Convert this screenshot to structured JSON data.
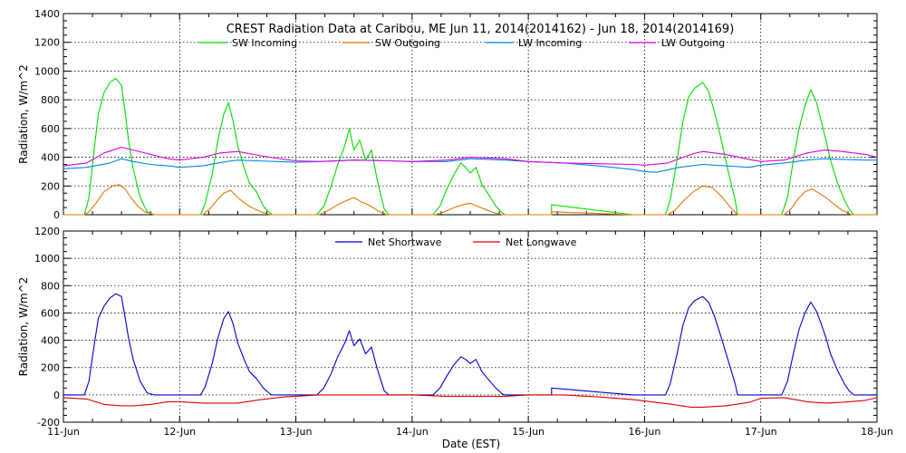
{
  "colors": {
    "sw_incoming": "#00dd00",
    "sw_outgoing": "#e07800",
    "lw_incoming": "#0088dd",
    "lw_outgoing": "#dd00dd",
    "net_shortwave": "#0000cc",
    "net_longwave": "#dd0000",
    "axis": "#000000",
    "grid": "#000000"
  },
  "chart_data": [
    {
      "type": "line",
      "title": "CREST Radiation Data at Caribou, ME   Jun 11, 2014(2014162) - Jun 18, 2014(2014169)",
      "xlabel": "",
      "ylabel": "Radiation, W/m^2",
      "x_unit": "days since 11-Jun 00:00",
      "xlim": [
        0,
        7
      ],
      "ylim": [
        0,
        1400
      ],
      "yticks": [
        0,
        200,
        400,
        600,
        800,
        1000,
        1200,
        1400
      ],
      "grid": true,
      "legend": "top",
      "series": [
        {
          "name": "SW Incoming",
          "key": "sw_incoming",
          "x": [
            0,
            0.18,
            0.22,
            0.26,
            0.3,
            0.35,
            0.4,
            0.45,
            0.5,
            0.53,
            0.56,
            0.6,
            0.66,
            0.72,
            0.78,
            0.8,
            1.0,
            1.18,
            1.22,
            1.28,
            1.33,
            1.38,
            1.42,
            1.46,
            1.5,
            1.55,
            1.6,
            1.66,
            1.72,
            1.78,
            1.8,
            2.0,
            2.18,
            2.24,
            2.3,
            2.36,
            2.42,
            2.46,
            2.5,
            2.55,
            2.6,
            2.65,
            2.7,
            2.76,
            2.8,
            3.0,
            3.18,
            3.24,
            3.3,
            3.36,
            3.42,
            3.46,
            3.5,
            3.55,
            3.6,
            3.66,
            3.72,
            3.78,
            3.8,
            4.0,
            4.2,
            4.2,
            4.9,
            5.0,
            5.18,
            5.22,
            5.28,
            5.33,
            5.38,
            5.43,
            5.5,
            5.55,
            5.6,
            5.66,
            5.72,
            5.78,
            5.8,
            6.0,
            6.18,
            6.23,
            6.28,
            6.33,
            6.38,
            6.43,
            6.48,
            6.52,
            6.56,
            6.6,
            6.66,
            6.72,
            6.76,
            6.8,
            7.0
          ],
          "y": [
            0,
            0,
            120,
            420,
            700,
            850,
            920,
            950,
            900,
            720,
            520,
            320,
            120,
            20,
            0,
            0,
            0,
            0,
            80,
            280,
            520,
            700,
            780,
            650,
            480,
            340,
            220,
            160,
            60,
            10,
            0,
            0,
            0,
            60,
            190,
            350,
            480,
            600,
            450,
            520,
            380,
            450,
            240,
            40,
            0,
            0,
            0,
            60,
            180,
            280,
            360,
            330,
            290,
            330,
            210,
            140,
            60,
            10,
            0,
            0,
            0,
            70,
            0,
            0,
            0,
            100,
            380,
            650,
            820,
            880,
            920,
            860,
            720,
            520,
            300,
            100,
            0,
            0,
            0,
            120,
            380,
            600,
            760,
            870,
            780,
            650,
            520,
            380,
            220,
            100,
            40,
            0,
            0
          ]
        },
        {
          "name": "SW Outgoing",
          "key": "sw_outgoing",
          "x": [
            0,
            0.18,
            0.22,
            0.28,
            0.35,
            0.42,
            0.48,
            0.53,
            0.58,
            0.64,
            0.7,
            0.78,
            0.8,
            1.0,
            1.2,
            1.26,
            1.32,
            1.38,
            1.44,
            1.5,
            1.56,
            1.62,
            1.7,
            1.78,
            1.8,
            2.0,
            2.2,
            2.28,
            2.36,
            2.44,
            2.5,
            2.56,
            2.62,
            2.7,
            2.78,
            2.8,
            3.0,
            3.2,
            3.28,
            3.36,
            3.44,
            3.5,
            3.56,
            3.62,
            3.7,
            3.78,
            3.8,
            4.0,
            4.2,
            4.2,
            4.9,
            5.0,
            5.2,
            5.26,
            5.34,
            5.42,
            5.5,
            5.58,
            5.66,
            5.74,
            5.8,
            6.0,
            6.2,
            6.26,
            6.32,
            6.38,
            6.44,
            6.5,
            6.56,
            6.62,
            6.7,
            6.78,
            6.8,
            7.0
          ],
          "y": [
            0,
            0,
            20,
            80,
            160,
            200,
            210,
            180,
            120,
            60,
            20,
            0,
            0,
            0,
            0,
            40,
            100,
            150,
            170,
            120,
            80,
            50,
            20,
            0,
            0,
            0,
            0,
            30,
            70,
            100,
            120,
            90,
            70,
            30,
            0,
            0,
            0,
            0,
            20,
            50,
            70,
            80,
            60,
            40,
            15,
            0,
            0,
            0,
            0,
            20,
            0,
            0,
            0,
            30,
            100,
            160,
            200,
            190,
            130,
            50,
            0,
            0,
            0,
            40,
            110,
            160,
            180,
            150,
            120,
            80,
            30,
            0,
            0,
            0
          ]
        },
        {
          "name": "LW Incoming",
          "key": "lw_incoming",
          "x": [
            0,
            0.2,
            0.4,
            0.5,
            0.6,
            0.75,
            0.9,
            1.0,
            1.2,
            1.4,
            1.5,
            1.65,
            1.85,
            2.0,
            2.2,
            2.5,
            2.8,
            3.0,
            3.3,
            3.5,
            3.8,
            4.0,
            4.3,
            4.6,
            4.9,
            5.0,
            5.1,
            5.3,
            5.5,
            5.7,
            5.9,
            6.0,
            6.2,
            6.4,
            6.55,
            6.7,
            6.9,
            7.0
          ],
          "y": [
            320,
            330,
            360,
            390,
            370,
            350,
            340,
            330,
            340,
            370,
            380,
            375,
            370,
            365,
            370,
            380,
            375,
            370,
            370,
            390,
            380,
            370,
            360,
            340,
            315,
            300,
            295,
            330,
            350,
            340,
            330,
            345,
            360,
            380,
            390,
            385,
            380,
            380
          ]
        },
        {
          "name": "LW Outgoing",
          "key": "lw_outgoing",
          "x": [
            0,
            0.2,
            0.35,
            0.5,
            0.6,
            0.75,
            0.9,
            1.0,
            1.2,
            1.35,
            1.5,
            1.7,
            1.9,
            2.0,
            2.2,
            2.5,
            2.8,
            3.0,
            3.3,
            3.5,
            3.8,
            4.0,
            4.3,
            4.6,
            4.9,
            5.0,
            5.2,
            5.4,
            5.5,
            5.7,
            5.9,
            6.0,
            6.2,
            6.4,
            6.55,
            6.7,
            6.9,
            7.0
          ],
          "y": [
            340,
            360,
            430,
            470,
            450,
            420,
            390,
            380,
            400,
            430,
            440,
            410,
            385,
            375,
            370,
            380,
            375,
            370,
            380,
            400,
            390,
            370,
            360,
            355,
            350,
            345,
            360,
            420,
            440,
            420,
            385,
            370,
            380,
            430,
            450,
            440,
            420,
            400
          ]
        }
      ]
    },
    {
      "type": "line",
      "title": "",
      "xlabel": "Date (EST)",
      "ylabel": "Radiation, W/m^2",
      "x_unit": "days since 11-Jun 00:00",
      "xlim": [
        0,
        7
      ],
      "ylim": [
        -200,
        1200
      ],
      "yticks": [
        -200,
        0,
        200,
        400,
        600,
        800,
        1000,
        1200
      ],
      "xtick_labels": [
        "11-Jun",
        "12-Jun",
        "13-Jun",
        "14-Jun",
        "15-Jun",
        "16-Jun",
        "17-Jun",
        "18-Jun"
      ],
      "grid": true,
      "legend": "top",
      "series": [
        {
          "name": "Net Shortwave",
          "key": "net_shortwave",
          "x": [
            0,
            0.18,
            0.22,
            0.26,
            0.3,
            0.35,
            0.4,
            0.45,
            0.5,
            0.53,
            0.56,
            0.6,
            0.66,
            0.72,
            0.78,
            0.8,
            1.0,
            1.18,
            1.22,
            1.28,
            1.33,
            1.38,
            1.42,
            1.46,
            1.5,
            1.55,
            1.6,
            1.66,
            1.72,
            1.78,
            1.8,
            2.0,
            2.18,
            2.24,
            2.3,
            2.36,
            2.42,
            2.46,
            2.5,
            2.55,
            2.6,
            2.65,
            2.7,
            2.76,
            2.8,
            3.0,
            3.18,
            3.24,
            3.3,
            3.36,
            3.42,
            3.46,
            3.5,
            3.55,
            3.6,
            3.66,
            3.72,
            3.78,
            3.8,
            4.0,
            4.2,
            4.2,
            4.9,
            5.0,
            5.18,
            5.22,
            5.28,
            5.33,
            5.38,
            5.43,
            5.5,
            5.55,
            5.6,
            5.66,
            5.72,
            5.78,
            5.8,
            6.0,
            6.18,
            6.23,
            6.28,
            6.33,
            6.38,
            6.43,
            6.48,
            6.52,
            6.56,
            6.6,
            6.66,
            6.72,
            6.76,
            6.8,
            7.0
          ],
          "y": [
            0,
            0,
            100,
            340,
            560,
            650,
            710,
            740,
            720,
            570,
            420,
            260,
            100,
            15,
            0,
            0,
            0,
            0,
            60,
            230,
            420,
            560,
            610,
            520,
            380,
            270,
            170,
            120,
            50,
            5,
            0,
            0,
            0,
            50,
            150,
            280,
            380,
            470,
            360,
            410,
            300,
            350,
            190,
            30,
            0,
            0,
            0,
            50,
            140,
            220,
            280,
            260,
            230,
            260,
            170,
            110,
            50,
            5,
            0,
            0,
            0,
            50,
            0,
            0,
            0,
            80,
            300,
            510,
            640,
            690,
            720,
            680,
            580,
            420,
            250,
            80,
            0,
            0,
            0,
            100,
            300,
            480,
            600,
            680,
            610,
            520,
            420,
            300,
            180,
            80,
            30,
            0,
            0
          ]
        },
        {
          "name": "Net Longwave",
          "key": "net_longwave",
          "x": [
            0,
            0.2,
            0.35,
            0.5,
            0.6,
            0.75,
            0.9,
            1.0,
            1.2,
            1.35,
            1.5,
            1.7,
            1.9,
            2.0,
            2.2,
            2.5,
            2.8,
            3.0,
            3.3,
            3.5,
            3.8,
            4.0,
            4.3,
            4.6,
            4.9,
            5.0,
            5.2,
            5.4,
            5.5,
            5.7,
            5.9,
            6.0,
            6.2,
            6.4,
            6.55,
            6.7,
            6.9,
            7.0
          ],
          "y": [
            -20,
            -30,
            -70,
            -80,
            -80,
            -70,
            -50,
            -50,
            -60,
            -60,
            -60,
            -35,
            -15,
            -10,
            0,
            0,
            0,
            0,
            -10,
            -10,
            -10,
            0,
            0,
            -15,
            -35,
            -45,
            -65,
            -90,
            -90,
            -80,
            -55,
            -25,
            -20,
            -50,
            -60,
            -55,
            -40,
            -20
          ]
        }
      ]
    }
  ]
}
